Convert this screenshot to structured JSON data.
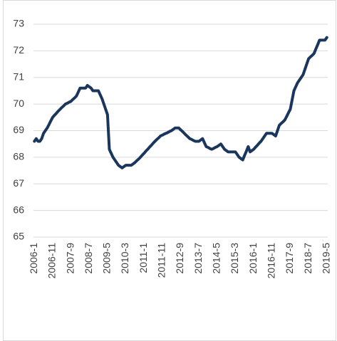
{
  "chart_data": {
    "type": "line",
    "categories": [
      "2006-1",
      null,
      null,
      null,
      null,
      null,
      null,
      null,
      null,
      null,
      "2006-11",
      null,
      null,
      null,
      null,
      null,
      null,
      null,
      null,
      null,
      "2007-9",
      null,
      null,
      null,
      null,
      null,
      null,
      null,
      null,
      null,
      "2008-7",
      null,
      null,
      null,
      null,
      null,
      null,
      null,
      null,
      null,
      "2009-5",
      null,
      null,
      null,
      null,
      null,
      null,
      null,
      null,
      null,
      "2010-3",
      null,
      null,
      null,
      null,
      null,
      null,
      null,
      null,
      null,
      "2011-1",
      null,
      null,
      null,
      null,
      null,
      null,
      null,
      null,
      null,
      "2011-11",
      null,
      null,
      null,
      null,
      null,
      null,
      null,
      null,
      null,
      "2012-9",
      null,
      null,
      null,
      null,
      null,
      null,
      null,
      null,
      null,
      "2013-7",
      null,
      null,
      null,
      null,
      null,
      null,
      null,
      null,
      null,
      "2014-5",
      null,
      null,
      null,
      null,
      null,
      null,
      null,
      null,
      null,
      "2015-3",
      null,
      null,
      null,
      null,
      null,
      null,
      null,
      null,
      null,
      "2016-1",
      null,
      null,
      null,
      null,
      null,
      null,
      null,
      null,
      null,
      "2016-11",
      null,
      null,
      null,
      null,
      null,
      null,
      null,
      null,
      null,
      "2017-9",
      null,
      null,
      null,
      null,
      null,
      null,
      null,
      null,
      null,
      "2018-7",
      null,
      null,
      null,
      null,
      null,
      null,
      null,
      null,
      null,
      "2019-5"
    ],
    "values": [
      68.6,
      68.7,
      68.6,
      68.6,
      68.7,
      68.9,
      69.0,
      69.1,
      69.23,
      69.37,
      69.5,
      69.58,
      69.65,
      69.73,
      69.8,
      69.87,
      69.93,
      70.0,
      70.03,
      70.07,
      70.1,
      70.17,
      70.23,
      70.3,
      70.45,
      70.6,
      70.6,
      70.6,
      70.6,
      70.7,
      70.65,
      70.6,
      70.5,
      70.5,
      70.5,
      70.5,
      70.35,
      70.2,
      70.0,
      69.8,
      69.6,
      68.3,
      68.15,
      68.0,
      67.9,
      67.8,
      67.7,
      67.65,
      67.6,
      67.65,
      67.7,
      67.7,
      67.7,
      67.7,
      67.75,
      67.8,
      67.87,
      67.93,
      68.0,
      68.08,
      68.15,
      68.23,
      68.3,
      68.38,
      68.45,
      68.53,
      68.6,
      68.67,
      68.73,
      68.8,
      68.83,
      68.87,
      68.9,
      68.93,
      68.97,
      69.0,
      69.05,
      69.1,
      69.1,
      69.1,
      69.03,
      68.97,
      68.9,
      68.83,
      68.77,
      68.7,
      68.67,
      68.63,
      68.6,
      68.6,
      68.6,
      68.65,
      68.7,
      68.55,
      68.4,
      68.37,
      68.33,
      68.3,
      68.33,
      68.37,
      68.4,
      68.45,
      68.5,
      68.4,
      68.3,
      68.25,
      68.2,
      68.2,
      68.2,
      68.2,
      68.2,
      68.1,
      68.0,
      67.95,
      67.9,
      68.07,
      68.23,
      68.4,
      68.2,
      68.25,
      68.3,
      68.38,
      68.45,
      68.53,
      68.6,
      68.7,
      68.8,
      68.9,
      68.9,
      68.9,
      68.9,
      68.85,
      68.8,
      69.0,
      69.2,
      69.27,
      69.33,
      69.4,
      69.53,
      69.67,
      69.8,
      70.15,
      70.5,
      70.65,
      70.8,
      70.9,
      71.0,
      71.1,
      71.3,
      71.5,
      71.7,
      71.77,
      71.83,
      71.9,
      72.07,
      72.23,
      72.4,
      72.4,
      72.4,
      72.4,
      72.5
    ],
    "color": "#1b365d",
    "ylim": [
      65,
      73
    ],
    "yticks": [
      65,
      66,
      67,
      68,
      69,
      70,
      71,
      72,
      73
    ],
    "grid": true
  }
}
